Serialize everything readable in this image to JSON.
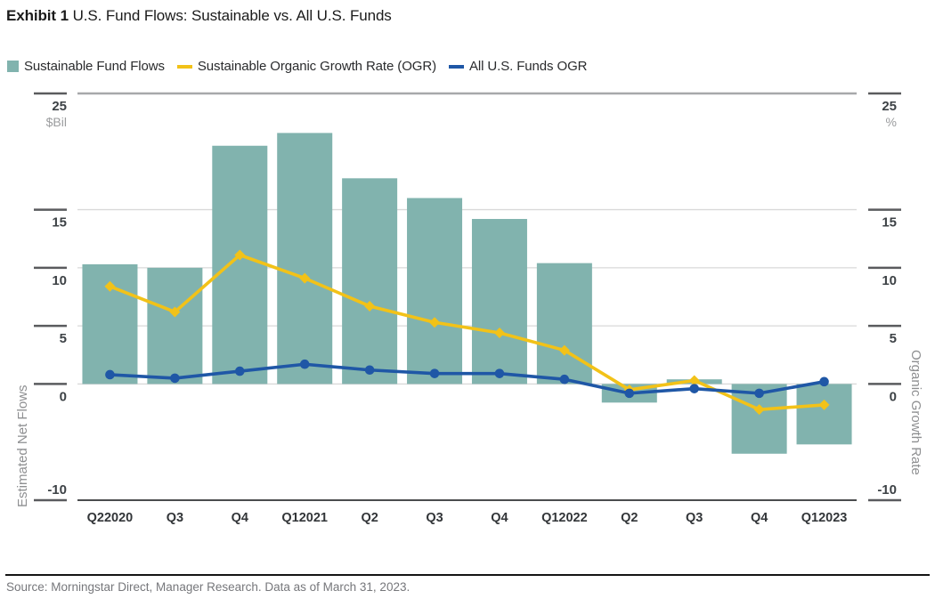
{
  "header": {
    "exhibit_label": "Exhibit 1",
    "title": "U.S. Fund Flows: Sustainable vs. All U.S. Funds"
  },
  "legend": {
    "items": [
      {
        "label": "Sustainable Fund Flows",
        "marker": "bar-swatch"
      },
      {
        "label": "Sustainable Organic Growth Rate (OGR)",
        "marker": "yellow-line"
      },
      {
        "label": "All U.S. Funds OGR",
        "marker": "blue-line"
      }
    ]
  },
  "chart_data": {
    "type": "bar+line",
    "categories": [
      "Q22020",
      "Q3",
      "Q4",
      "Q12021",
      "Q2",
      "Q3",
      "Q4",
      "Q12022",
      "Q2",
      "Q3",
      "Q4",
      "Q12023"
    ],
    "bar_series": {
      "name": "Sustainable Fund Flows",
      "unit": "$Bil",
      "values": [
        10.3,
        10.0,
        20.5,
        21.6,
        17.7,
        16.0,
        14.2,
        10.4,
        -1.6,
        0.4,
        -6.0,
        -5.2
      ]
    },
    "line_series": [
      {
        "name": "Sustainable Organic Growth Rate (OGR)",
        "unit": "%",
        "marker": "diamond",
        "values": [
          8.4,
          6.2,
          11.1,
          9.1,
          6.7,
          5.3,
          4.4,
          2.9,
          -0.5,
          0.3,
          -2.2,
          -1.8
        ]
      },
      {
        "name": "All U.S. Funds OGR",
        "unit": "%",
        "marker": "circle",
        "values": [
          0.8,
          0.5,
          1.1,
          1.7,
          1.2,
          0.9,
          0.9,
          0.4,
          -0.8,
          -0.4,
          -0.8,
          0.2
        ]
      }
    ],
    "left_axis": {
      "title": "Estimated Net Flows",
      "unit_label": "$Bil",
      "ticks": [
        25,
        15,
        10,
        5,
        0,
        -10
      ]
    },
    "right_axis": {
      "title": "Organic Growth Rate",
      "unit_label": "%",
      "ticks": [
        25,
        15,
        10,
        5,
        0,
        -10
      ]
    },
    "ylim": [
      -10,
      25
    ],
    "grid": true,
    "legend_position": "top",
    "colors": {
      "bar": "#81b3ae",
      "line1": "#f2c218",
      "line2": "#1f57a6"
    }
  },
  "footer": {
    "source": "Source: Morningstar Direct, Manager Research. Data as of March 31, 2023."
  }
}
